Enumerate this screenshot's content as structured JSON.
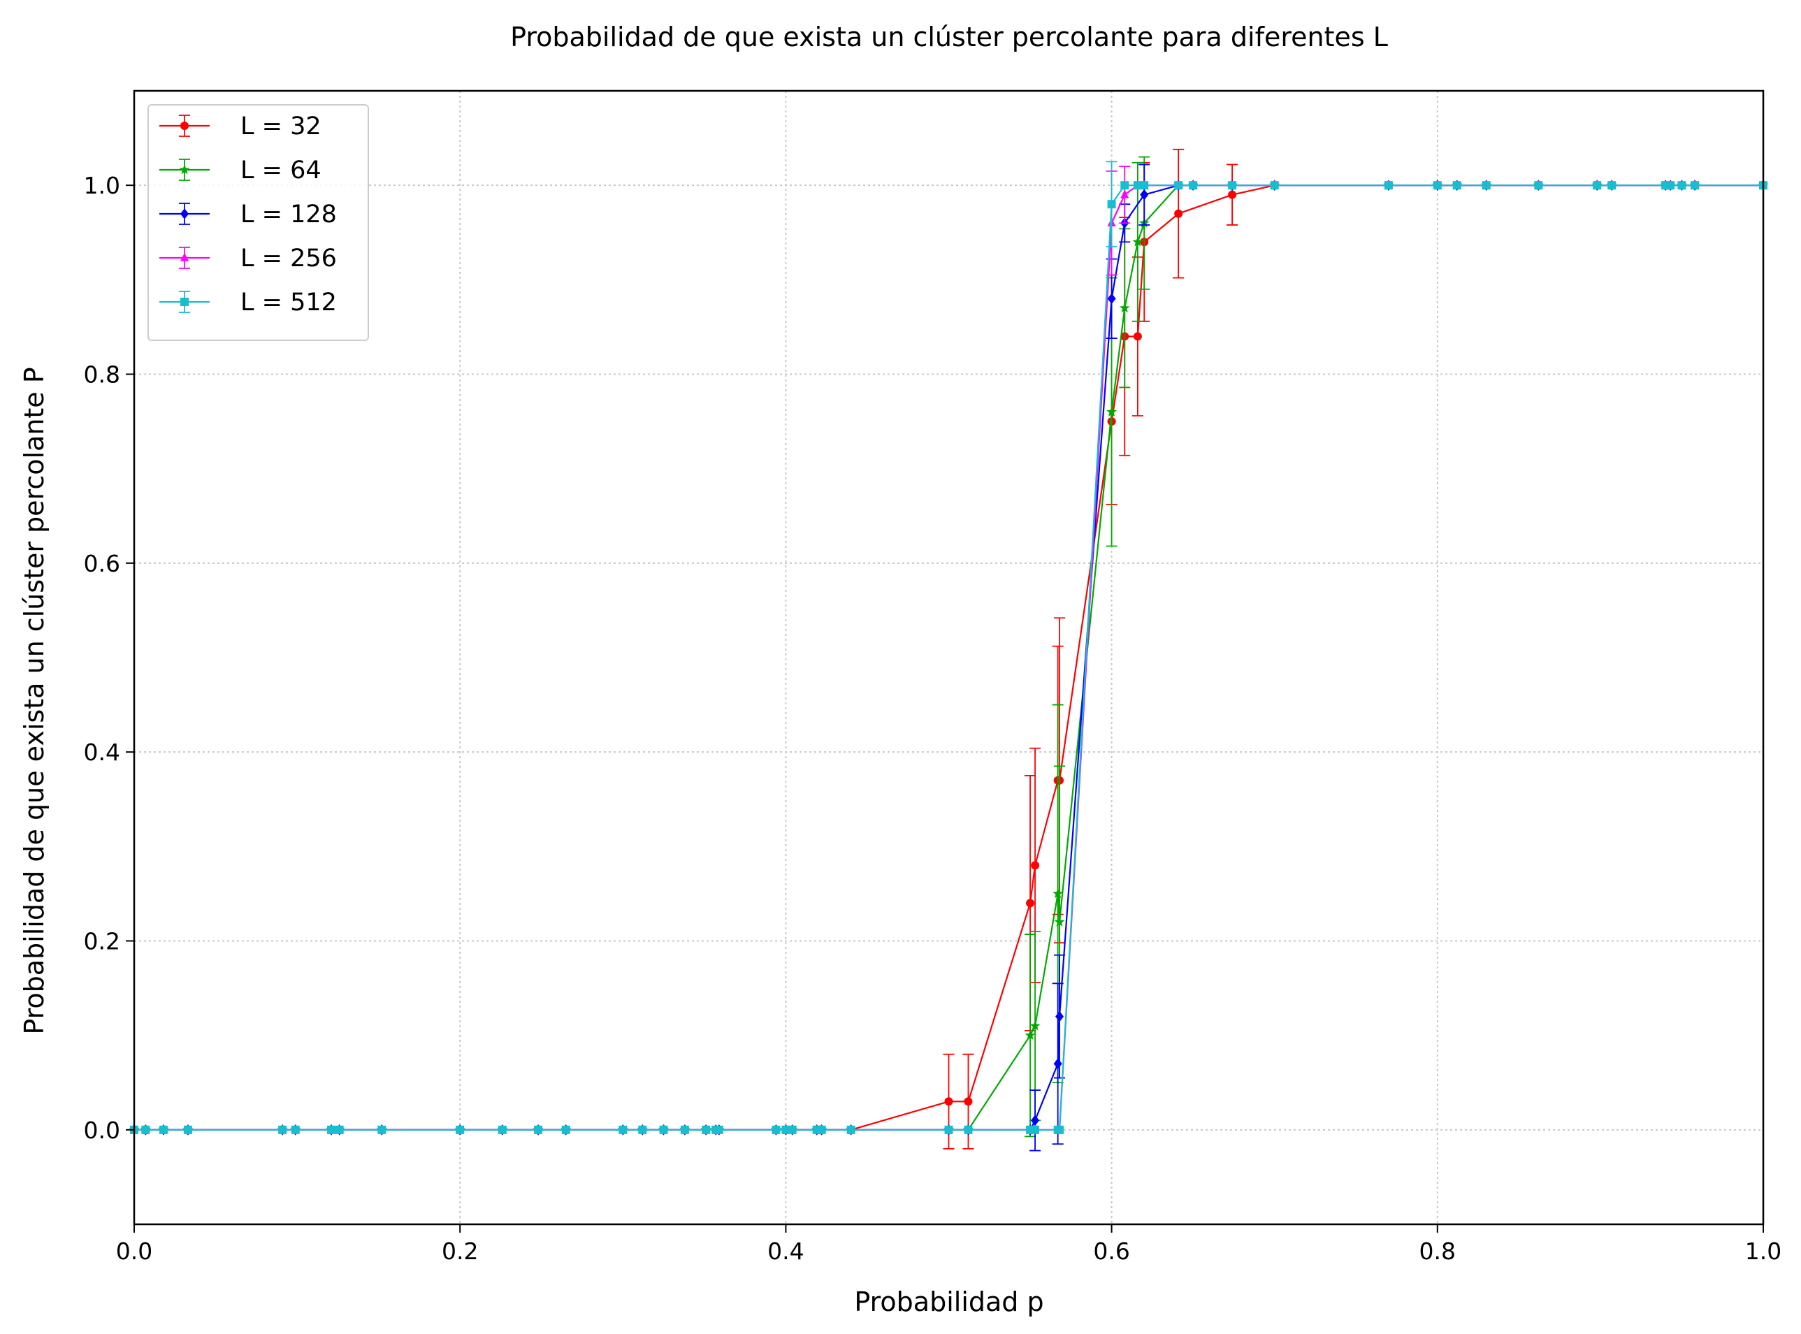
{
  "chart_data": {
    "type": "line",
    "title": "Probabilidad de que exista un clúster percolante para diferentes L",
    "xlabel": "Probabilidad p",
    "ylabel": "Probabilidad de que exista un clúster percolante P",
    "xlim": [
      0.0,
      1.0
    ],
    "ylim": [
      -0.1,
      1.1
    ],
    "xticks": [
      0.0,
      0.2,
      0.4,
      0.6,
      0.8,
      1.0
    ],
    "xtick_labels": [
      "0.0",
      "0.2",
      "0.4",
      "0.6",
      "0.8",
      "1.0"
    ],
    "yticks": [
      0.0,
      0.2,
      0.4,
      0.6,
      0.8,
      1.0
    ],
    "ytick_labels": [
      "0.0",
      "0.2",
      "0.4",
      "0.6",
      "0.8",
      "1.0"
    ],
    "grid": true,
    "legend_position": "top-left",
    "error_bars": true,
    "series": [
      {
        "name": "L = 32",
        "color": "#ff0000",
        "marker": "circle",
        "x": [
          0.0,
          0.007,
          0.018,
          0.033,
          0.091,
          0.099,
          0.121,
          0.126,
          0.152,
          0.2,
          0.226,
          0.248,
          0.265,
          0.3,
          0.312,
          0.325,
          0.338,
          0.351,
          0.357,
          0.359,
          0.394,
          0.4,
          0.404,
          0.419,
          0.422,
          0.44,
          0.5,
          0.512,
          0.55,
          0.553,
          0.567,
          0.568,
          0.6,
          0.608,
          0.616,
          0.62,
          0.641,
          0.674,
          0.7,
          0.77,
          0.8,
          0.812,
          0.83,
          0.862,
          0.898,
          0.907,
          0.94,
          0.943,
          0.95,
          0.958,
          1.0
        ],
        "y": [
          0,
          0,
          0,
          0,
          0,
          0,
          0,
          0,
          0,
          0,
          0,
          0,
          0,
          0,
          0,
          0,
          0,
          0,
          0,
          0,
          0,
          0,
          0,
          0,
          0,
          0,
          0.03,
          0.03,
          0.24,
          0.28,
          0.37,
          0.37,
          0.75,
          0.84,
          0.84,
          0.94,
          0.97,
          0.99,
          1,
          1,
          1,
          1,
          1,
          1,
          1,
          1,
          1,
          1,
          1,
          1,
          1
        ],
        "err": [
          0,
          0,
          0,
          0,
          0,
          0,
          0,
          0,
          0,
          0,
          0,
          0,
          0,
          0,
          0,
          0,
          0,
          0,
          0,
          0,
          0,
          0,
          0,
          0,
          0,
          0,
          0.05,
          0.05,
          0.135,
          0.124,
          0.142,
          0.172,
          0.088,
          0.126,
          0.084,
          0.084,
          0.068,
          0.032,
          0,
          0,
          0,
          0,
          0,
          0,
          0,
          0,
          0,
          0,
          0,
          0,
          0
        ]
      },
      {
        "name": "L = 64",
        "color": "#00aa00",
        "marker": "star",
        "x": [
          0.0,
          0.007,
          0.018,
          0.033,
          0.091,
          0.099,
          0.121,
          0.126,
          0.152,
          0.2,
          0.226,
          0.248,
          0.265,
          0.3,
          0.312,
          0.325,
          0.338,
          0.351,
          0.357,
          0.359,
          0.394,
          0.4,
          0.404,
          0.419,
          0.422,
          0.44,
          0.5,
          0.512,
          0.55,
          0.553,
          0.567,
          0.568,
          0.6,
          0.608,
          0.616,
          0.62,
          0.641,
          0.65,
          0.674,
          0.7,
          0.77,
          0.8,
          0.812,
          0.83,
          0.862,
          0.898,
          0.907,
          0.94,
          0.943,
          0.95,
          0.958,
          1.0
        ],
        "y": [
          0,
          0,
          0,
          0,
          0,
          0,
          0,
          0,
          0,
          0,
          0,
          0,
          0,
          0,
          0,
          0,
          0,
          0,
          0,
          0,
          0,
          0,
          0,
          0,
          0,
          0,
          0,
          0,
          0.1,
          0.11,
          0.25,
          0.22,
          0.76,
          0.87,
          0.94,
          0.96,
          1,
          1,
          1,
          1,
          1,
          1,
          1,
          1,
          1,
          1,
          1,
          1,
          1,
          1,
          1,
          1
        ],
        "err": [
          0,
          0,
          0,
          0,
          0,
          0,
          0,
          0,
          0,
          0,
          0,
          0,
          0,
          0,
          0,
          0,
          0,
          0,
          0,
          0,
          0,
          0,
          0,
          0,
          0,
          0,
          0,
          0,
          0.107,
          0.1,
          0.2,
          0.165,
          0.142,
          0.084,
          0.084,
          0.07,
          0,
          0,
          0,
          0,
          0,
          0,
          0,
          0,
          0,
          0,
          0,
          0,
          0,
          0,
          0,
          0
        ]
      },
      {
        "name": "L = 128",
        "color": "#0000ff",
        "marker": "diamond",
        "x": [
          0.0,
          0.007,
          0.018,
          0.033,
          0.091,
          0.099,
          0.121,
          0.126,
          0.152,
          0.2,
          0.226,
          0.248,
          0.265,
          0.3,
          0.312,
          0.325,
          0.338,
          0.351,
          0.357,
          0.359,
          0.394,
          0.4,
          0.404,
          0.419,
          0.422,
          0.44,
          0.5,
          0.512,
          0.55,
          0.553,
          0.567,
          0.568,
          0.6,
          0.608,
          0.62,
          0.641,
          0.65,
          0.674,
          0.7,
          0.77,
          0.8,
          0.812,
          0.83,
          0.862,
          0.898,
          0.907,
          0.94,
          0.943,
          0.95,
          0.958,
          1.0
        ],
        "y": [
          0,
          0,
          0,
          0,
          0,
          0,
          0,
          0,
          0,
          0,
          0,
          0,
          0,
          0,
          0,
          0,
          0,
          0,
          0,
          0,
          0,
          0,
          0,
          0,
          0,
          0,
          0,
          0,
          0,
          0.01,
          0.07,
          0.12,
          0.88,
          0.96,
          0.99,
          1,
          1,
          1,
          1,
          1,
          1,
          1,
          1,
          1,
          1,
          1,
          1,
          1,
          1,
          1,
          1
        ],
        "err": [
          0,
          0,
          0,
          0,
          0,
          0,
          0,
          0,
          0,
          0,
          0,
          0,
          0,
          0,
          0,
          0,
          0,
          0,
          0,
          0,
          0,
          0,
          0,
          0,
          0,
          0,
          0,
          0,
          0,
          0.032,
          0.085,
          0.065,
          0.042,
          0.02,
          0.032,
          0,
          0,
          0,
          0,
          0,
          0,
          0,
          0,
          0,
          0,
          0,
          0,
          0,
          0,
          0,
          0
        ]
      },
      {
        "name": "L = 256",
        "color": "#ff00ff",
        "marker": "triangle",
        "x": [
          0.0,
          0.007,
          0.018,
          0.033,
          0.091,
          0.099,
          0.121,
          0.126,
          0.152,
          0.2,
          0.226,
          0.248,
          0.265,
          0.3,
          0.312,
          0.325,
          0.338,
          0.351,
          0.357,
          0.359,
          0.394,
          0.4,
          0.404,
          0.419,
          0.422,
          0.44,
          0.5,
          0.512,
          0.55,
          0.553,
          0.567,
          0.568,
          0.6,
          0.608,
          0.616,
          0.62,
          0.641,
          0.65,
          0.674,
          0.7,
          0.77,
          0.8,
          0.812,
          0.83,
          0.862,
          0.898,
          0.907,
          0.94,
          0.943,
          0.95,
          0.958,
          1.0
        ],
        "y": [
          0,
          0,
          0,
          0,
          0,
          0,
          0,
          0,
          0,
          0,
          0,
          0,
          0,
          0,
          0,
          0,
          0,
          0,
          0,
          0,
          0,
          0,
          0,
          0,
          0,
          0,
          0,
          0,
          0,
          0,
          0,
          0,
          0.96,
          0.99,
          1,
          1,
          1,
          1,
          1,
          1,
          1,
          1,
          1,
          1,
          1,
          1,
          1,
          1,
          1,
          1,
          1,
          1
        ],
        "err": [
          0,
          0,
          0,
          0,
          0,
          0,
          0,
          0,
          0,
          0,
          0,
          0,
          0,
          0,
          0,
          0,
          0,
          0,
          0,
          0,
          0,
          0,
          0,
          0,
          0,
          0,
          0,
          0,
          0,
          0,
          0,
          0,
          0.055,
          0.03,
          0,
          0,
          0,
          0,
          0,
          0,
          0,
          0,
          0,
          0,
          0,
          0,
          0,
          0,
          0,
          0,
          0,
          0
        ]
      },
      {
        "name": "L = 512",
        "color": "#17becf",
        "marker": "square",
        "x": [
          0.0,
          0.007,
          0.018,
          0.033,
          0.091,
          0.099,
          0.121,
          0.126,
          0.152,
          0.2,
          0.226,
          0.248,
          0.265,
          0.3,
          0.312,
          0.325,
          0.338,
          0.351,
          0.357,
          0.359,
          0.394,
          0.4,
          0.404,
          0.419,
          0.422,
          0.44,
          0.5,
          0.512,
          0.55,
          0.553,
          0.567,
          0.568,
          0.6,
          0.608,
          0.616,
          0.62,
          0.641,
          0.65,
          0.674,
          0.7,
          0.77,
          0.8,
          0.812,
          0.83,
          0.862,
          0.898,
          0.907,
          0.94,
          0.943,
          0.95,
          0.958,
          1.0
        ],
        "y": [
          0,
          0,
          0,
          0,
          0,
          0,
          0,
          0,
          0,
          0,
          0,
          0,
          0,
          0,
          0,
          0,
          0,
          0,
          0,
          0,
          0,
          0,
          0,
          0,
          0,
          0,
          0,
          0,
          0,
          0,
          0,
          0,
          0.98,
          1,
          1,
          1,
          1,
          1,
          1,
          1,
          1,
          1,
          1,
          1,
          1,
          1,
          1,
          1,
          1,
          1,
          1,
          1
        ],
        "err": [
          0,
          0,
          0,
          0,
          0,
          0,
          0,
          0,
          0,
          0,
          0,
          0,
          0,
          0,
          0,
          0,
          0,
          0,
          0,
          0,
          0,
          0,
          0,
          0,
          0,
          0,
          0,
          0,
          0,
          0,
          0,
          0,
          0.045,
          0,
          0,
          0,
          0,
          0,
          0,
          0,
          0,
          0,
          0,
          0,
          0,
          0,
          0,
          0,
          0,
          0,
          0,
          0
        ]
      }
    ]
  }
}
